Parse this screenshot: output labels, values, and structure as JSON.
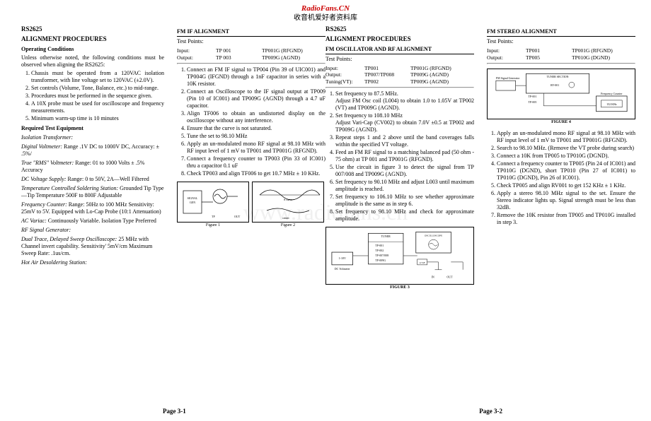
{
  "header": {
    "site": "RadioFans.CN",
    "subtitle": "收音机爱好者资料库"
  },
  "watermark": "www.radiofans.cn",
  "page_left": {
    "model": "RS2625",
    "title": "ALIGNMENT PROCEDURES",
    "op_cond_title": "Operating Conditions",
    "op_cond_intro": "Unless otherwise noted, the following conditions must be observed when aligning the RS2625:",
    "op_cond_list": [
      "Chassis must be operated from a 120VAC isolation transformer, with line voltage set to 120VAC (±2.0V).",
      "Set controls (Volume, Tone, Balance, etc.) to mid-range.",
      "Procedures must be performed in the sequence given.",
      "A 10X probe must be used for oscilloscope and frequency measurements.",
      "Minimum warm-up time is 10 minutes"
    ],
    "req_equip_title": "Required Test Equipment",
    "equipment": [
      {
        "label": "Isolation Transformer:",
        "text": ""
      },
      {
        "label": "Digital Voltmeter:",
        "text": " Range .1V DC to 1000V DC, Accuracy: ± .5%/"
      },
      {
        "label": "True \"RMS\" Voltmeter:",
        "text": " Range: 01 to 1000 Volts ± .5% Accuracy"
      },
      {
        "label": "DC Voltage Supply:",
        "text": " Range: 0 to 50V, 2A—Well Filtered"
      },
      {
        "label": "Temperature Controlled Soldering Station:",
        "text": " Grounded Tip Type—Tip Temperature 500F to 800F Adjustable"
      },
      {
        "label": "Frequency Counter:",
        "text": " Range: 50Hz to 100 MHz Sensitivity: 25mV to 5V. Equipped with Lo-Cap Probe (10:1 Attenuation)"
      },
      {
        "label": "AC Variac:",
        "text": " Continuously Variable. Isolation Type Preferred"
      },
      {
        "label": "RF Signal Generator:",
        "text": ""
      },
      {
        "label": "Dual Trace, Delayed Sweep Oscilloscope:",
        "text": " 25 MHz with Channel invert capability. Sensitivity' 5mV/cm Maximum Sweep Rate: .1us/cm."
      },
      {
        "label": "Hot Air Desoldering Station:",
        "text": ""
      }
    ],
    "fmif_title": "FM IF ALIGNMENT",
    "tp_label": "Test Points:",
    "fmif_tp": [
      [
        "Input:",
        "TP 001",
        "TP001G (RFGND)"
      ],
      [
        "Output:",
        "TP 003",
        "TP009G (AGND)"
      ]
    ],
    "fmif_steps": [
      "Connect an FM IF signal to TP004 (Pin 39 of UIC001) and TP004G (IFGND) through a 1nF capacitor in series with a 10K resistor.",
      "Connect an Oscilloscope to the IF signal output at TP009 (Pin 10 of IC001) and TP009G (AGND) through a 4.7 uF capacitor.",
      "Align TF006 to obtain an undistorted display on the oscilloscope without any interference.",
      "Ensure that the curve is not saturated.",
      "Tune the set to 98.10 MHz",
      "Apply an un-modulated mono RF signal at 98.10 MHz with RF input level of 1 mV to TP001 and TP001G (RFGND).",
      "Connect a frequency counter to TP003 (Pin 33 of IC001) thru a capacitor 0.1 uF",
      "Check TP003 and align TF006 to get 10.7 MHz ± 10 KHz."
    ],
    "fig1_label": "Figure 1",
    "fig2_label": "Figure 2",
    "page_num": "Page 3-1"
  },
  "page_right": {
    "model": "RS2625",
    "title": "ALIGNMENT PROCEDURES",
    "fmosc_title": "FM OSCILLATOR AND RF  ALIGNMENT",
    "tp_label": "Test Points:",
    "fmosc_tp": [
      [
        "Input:",
        "TP001",
        "TP001G (RFGND)"
      ],
      [
        "Output:",
        "TP007/TP008",
        "TP009G (AGND)"
      ],
      [
        "Tuning(VT):",
        "TP002",
        "TP009G (AGND)"
      ]
    ],
    "fmosc_steps": [
      "Set frequency to 87.5 MHz.\nAdjust FM Osc coil (L004) to obtain 1.0 to 1.05V at TP002 (VT) and TP009G (AGND).",
      "Set frequency to 108.10 MHz\nAdjust Vari-Cap (CV002) to obtain 7.0V ±0.5 at TP002 and TP009G (AGND).",
      "Repeat steps 1 and 2 above until the band coverages falls within the specified VT voltage.",
      "Feed an FM RF signal to a matching balanced pad (50 ohm - 75 ohm) at TP 001 and TP001G (RFGND).",
      "Use the circuit in figure 3 to detect the signal from TP 007/008 and TP009G (AGND).",
      "Set frequency to 90.10 MHz and adjust L003 until maximum amplitude is reached.",
      "Set frequency to 106.10 MHz to see whether approximate amplitude is the same as in step 6.",
      "Set frequency to 98.10 MHz and check for approximate amplitude."
    ],
    "fig3_label": "FIGURE 3",
    "fmst_title": "FM STEREO ALIGNMENT",
    "fmst_tp": [
      [
        "Input:",
        "TP001",
        "TP001G (RFGND)"
      ],
      [
        "Output:",
        "TP005",
        "TP010G (DGND)"
      ]
    ],
    "fmst_steps": [
      "Apply an un-modulated mono RF signal at 98.10 MHz with RF input level of 1 mV to TP001 and TP001G (RFGND).",
      "Search to 98.10 MHz.  (Remove the VT probe during search)",
      "Connect a 10K from TP005 to TP010G (DGND).",
      "Connect a frequency counter to TP005 (Pin 24 of IC001) and TP010G (DGND), short TP010 (Pin 27 of IC001) to TP010G (DGND), Pin 26 of IC001).",
      "Check TP005 and align RV001 to get 152 KHz ± 1 KHz.",
      "Apply a stereo 98.10 MHz signal to the set. Ensure the Stereo indicator lights up. Signal strength must be less than 32dB.",
      "Remove the 10K resistor from TP005 and TP010G installed in step 3."
    ],
    "fig4_label": "FIGURE 4",
    "page_num": "Page 3-2"
  }
}
